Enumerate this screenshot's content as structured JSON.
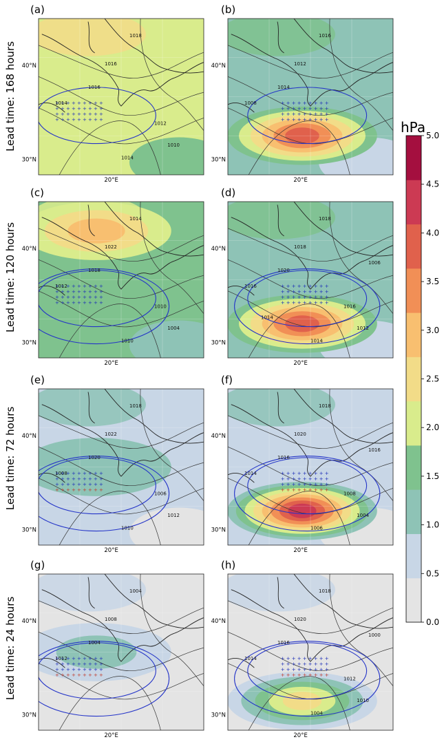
{
  "chart_data": {
    "type": "heatmap",
    "row_labels": [
      "Lead time: 168 hours",
      "Lead time: 120 hours",
      "Lead time: 72 hours",
      "Lead time: 24 hours"
    ],
    "panel_labels": [
      "(a)",
      "(b)",
      "(c)",
      "(d)",
      "(e)",
      "(f)",
      "(g)",
      "(h)"
    ],
    "x_tick_label": "20°E",
    "y_tick_labels": [
      "40°N",
      "30°N"
    ],
    "colorbar": {
      "unit": "hPa",
      "ticks": [
        "0.0",
        "0.5",
        "1.0",
        "1.5",
        "2.0",
        "2.5",
        "3.0",
        "3.5",
        "4.0",
        "4.5",
        "5.0"
      ],
      "levels": [
        0.0,
        0.5,
        1.0,
        1.5,
        2.0,
        2.5,
        3.0,
        3.5,
        4.0,
        4.5,
        5.0
      ],
      "colors": [
        "#e4e4e4",
        "#c8d6e6",
        "#8ec3b6",
        "#7fc28e",
        "#d9ec8c",
        "#f2dc88",
        "#f8bf70",
        "#f18f56",
        "#e0614c",
        "#cc3a53",
        "#a40f3f"
      ]
    },
    "panels": [
      {
        "label": "(a)",
        "base_level": 2.2,
        "blobs": [],
        "isobar_labels": [
          "1018",
          "1016",
          "1016",
          "1014",
          "1012",
          "1010",
          "1014"
        ]
      },
      {
        "label": "(b)",
        "base_level": 1.2,
        "blobs": [
          {
            "peak": 4.2,
            "lon_pos": "east of 20°E",
            "lat": 32
          }
        ],
        "isobar_labels": [
          "1016",
          "1012",
          "1014",
          "1008"
        ]
      },
      {
        "label": "(c)",
        "base_level": 1.6,
        "blobs": [
          {
            "peak": 3.2,
            "lat": 41
          }
        ],
        "isobar_labels": [
          "1014",
          "1022",
          "1018",
          "1012",
          "1010",
          "1004",
          "1010"
        ]
      },
      {
        "label": "(d)",
        "base_level": 1.0,
        "blobs": [
          {
            "peak": 4.1,
            "lat": 31.5
          }
        ],
        "isobar_labels": [
          "1018",
          "1018",
          "1020",
          "1016",
          "1016",
          "1012",
          "1014",
          "1006",
          "1014"
        ]
      },
      {
        "label": "(e)",
        "base_level": 0.8,
        "blobs": [
          {
            "peak": 1.3,
            "lat": 36
          }
        ],
        "isobar_labels": [
          "1018",
          "1022",
          "1020",
          "1008",
          "1006",
          "1012",
          "1010"
        ]
      },
      {
        "label": "(f)",
        "base_level": 0.6,
        "blobs": [
          {
            "peak": 4.6,
            "lat": 31.5
          }
        ],
        "isobar_labels": [
          "1018",
          "1020",
          "1016",
          "1014",
          "1008",
          "1004",
          "1006",
          "1016"
        ]
      },
      {
        "label": "(g)",
        "base_level": 0.2,
        "blobs": [
          {
            "peak": 1.6,
            "lat": 36
          }
        ],
        "isobar_labels": [
          "1004",
          "1008",
          "1004",
          "1012"
        ]
      },
      {
        "label": "(h)",
        "base_level": 0.2,
        "blobs": [
          {
            "peak": 2.8,
            "lat": 31
          }
        ],
        "isobar_labels": [
          "1018",
          "1020",
          "1016",
          "1014",
          "1012",
          "1010",
          "1004",
          "1000"
        ]
      }
    ]
  }
}
